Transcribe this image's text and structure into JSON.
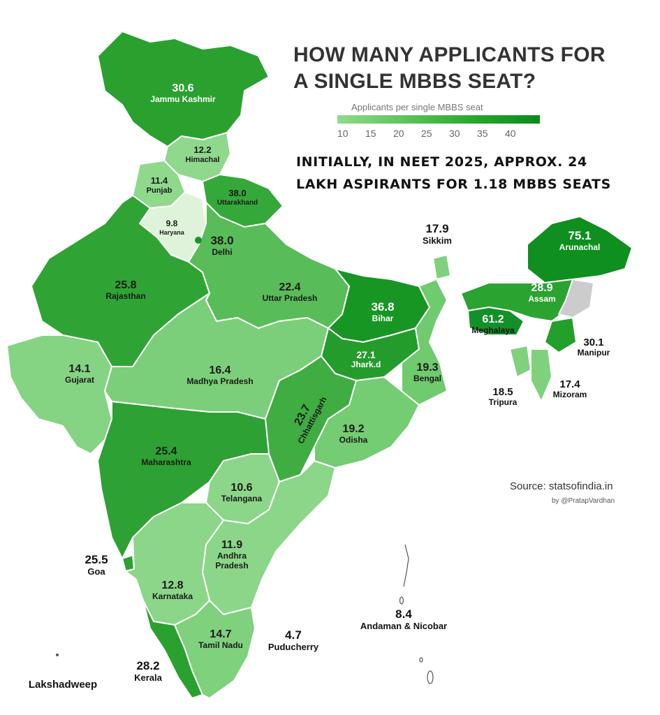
{
  "title_lines": [
    "HOW MANY APPLICANTS FOR",
    "A SINGLE MBBS SEAT?"
  ],
  "legend": {
    "title": "Applicants per single MBBS seat",
    "ticks": [
      "10",
      "15",
      "20",
      "25",
      "30",
      "35",
      "40"
    ]
  },
  "note_lines": [
    "INITIALLY, IN NEET 2025, APPROX. 24",
    "LAKH ASPIRANTS FOR 1.18 MBBS SEATS"
  ],
  "source": "Source: statsofindia.in",
  "byline": "by @PratapVardhan",
  "colors": {
    "low": "#8fdc8b",
    "mid": "#45b84a",
    "high": "#0b8a1c",
    "no_data": "#cccccc"
  },
  "regions": [
    {
      "id": "jk",
      "name": "Jammu Kashmir",
      "value": "30.6"
    },
    {
      "id": "hp",
      "name": "Himachal",
      "value": "12.2"
    },
    {
      "id": "pb",
      "name": "Punjab",
      "value": "11.4"
    },
    {
      "id": "uk",
      "name": "Uttarakhand",
      "value": "38.0"
    },
    {
      "id": "hr",
      "name": "Haryana",
      "value": "9.8"
    },
    {
      "id": "dl",
      "name": "Delhi",
      "value": "38.0"
    },
    {
      "id": "rj",
      "name": "Rajasthan",
      "value": "25.8"
    },
    {
      "id": "up",
      "name": "Uttar Pradesh",
      "value": "22.4"
    },
    {
      "id": "br",
      "name": "Bihar",
      "value": "36.8"
    },
    {
      "id": "sk",
      "name": "Sikkim",
      "value": "17.9"
    },
    {
      "id": "ar",
      "name": "Arunachal",
      "value": "75.1"
    },
    {
      "id": "as",
      "name": "Assam",
      "value": "28.9"
    },
    {
      "id": "ml",
      "name": "Meghalaya",
      "value": "61.2"
    },
    {
      "id": "mn",
      "name": "Manipur",
      "value": "30.1"
    },
    {
      "id": "jh",
      "name": "Jhark.d",
      "value": "27.1"
    },
    {
      "id": "wb",
      "name": "Bengal",
      "value": "19.3"
    },
    {
      "id": "tr",
      "name": "Tripura",
      "value": "18.5"
    },
    {
      "id": "mz",
      "name": "Mizoram",
      "value": "17.4"
    },
    {
      "id": "gj",
      "name": "Gujarat",
      "value": "14.1"
    },
    {
      "id": "mp",
      "name": "Madhya Pradesh",
      "value": "16.4"
    },
    {
      "id": "cg",
      "name": "Chhattisgarh",
      "value": "23.7"
    },
    {
      "id": "od",
      "name": "Odisha",
      "value": "19.2"
    },
    {
      "id": "mh",
      "name": "Maharashtra",
      "value": "25.4"
    },
    {
      "id": "tg",
      "name": "Telangana",
      "value": "10.6"
    },
    {
      "id": "ap",
      "name": "Andhra Pradesh",
      "value": "11.9"
    },
    {
      "id": "ga",
      "name": "Goa",
      "value": "25.5"
    },
    {
      "id": "ka",
      "name": "Karnataka",
      "value": "12.8"
    },
    {
      "id": "tn",
      "name": "Tamil Nadu",
      "value": "14.7"
    },
    {
      "id": "py",
      "name": "Puducherry",
      "value": "4.7"
    },
    {
      "id": "kl",
      "name": "Kerala",
      "value": "28.2"
    },
    {
      "id": "an",
      "name": "Andaman & Nicobar",
      "value": "8.4"
    },
    {
      "id": "ld",
      "name": "Lakshadweep",
      "value": ""
    }
  ]
}
